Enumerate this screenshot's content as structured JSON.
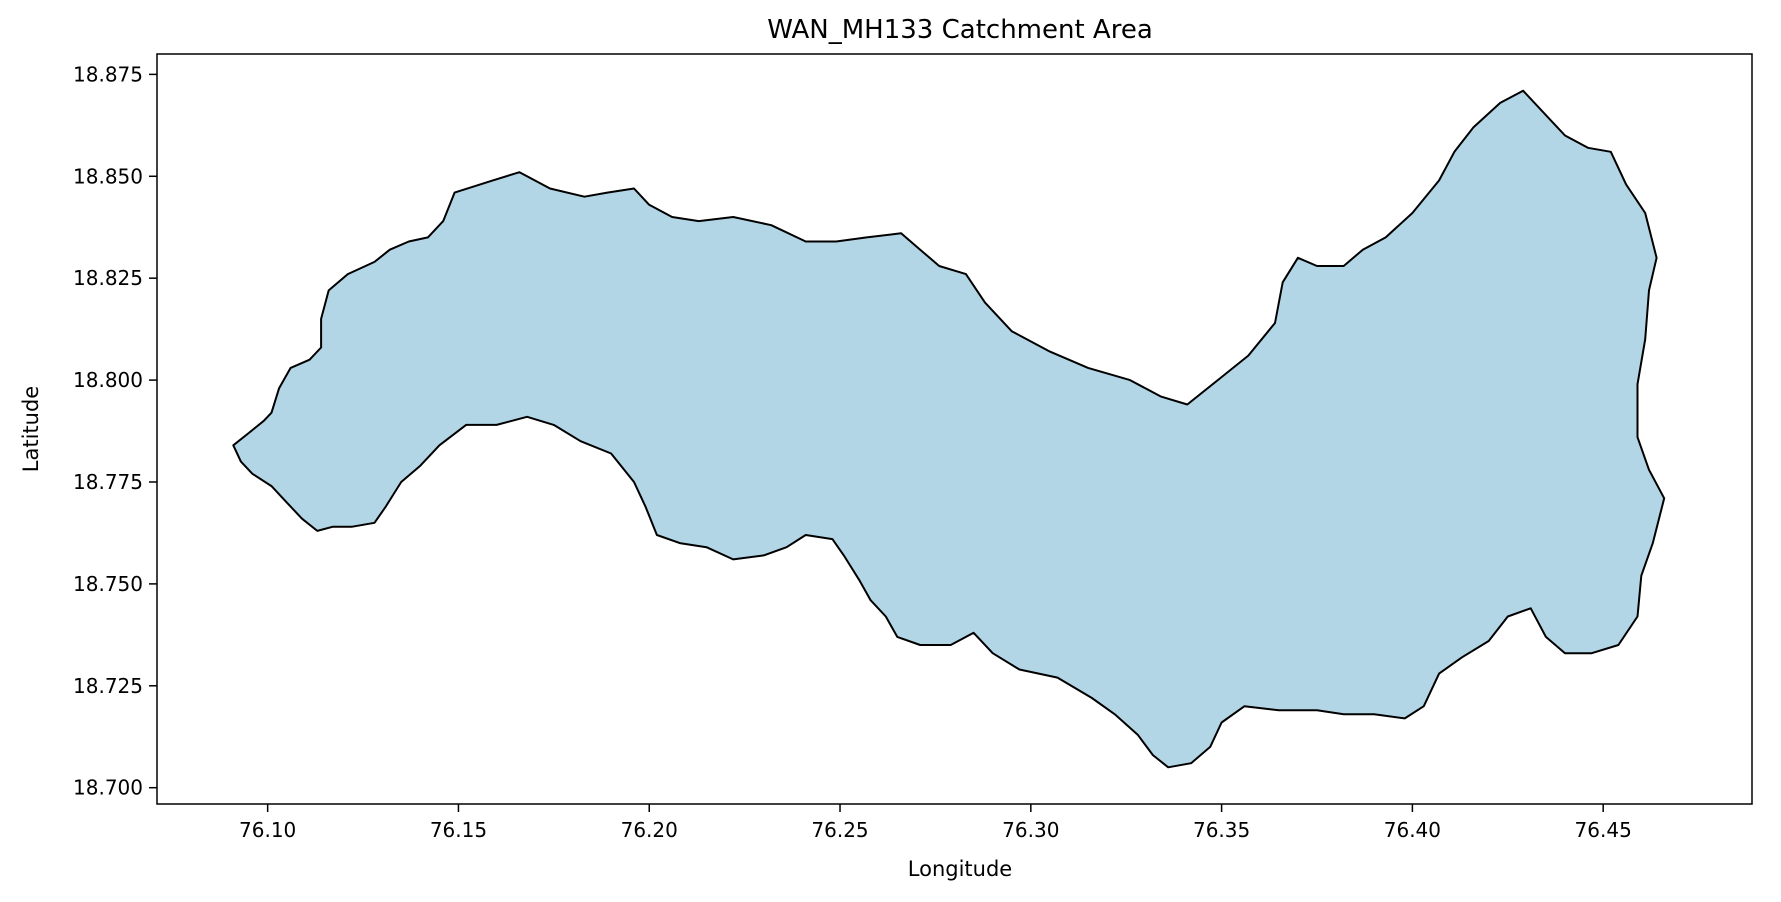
{
  "chart_data": {
    "type": "map",
    "title": "WAN_MH133 Catchment Area",
    "xlabel": "Longitude",
    "ylabel": "Latitude",
    "xlim": [
      76.071,
      76.489
    ],
    "ylim": [
      18.696,
      18.88
    ],
    "xticks": [
      76.1,
      76.15,
      76.2,
      76.25,
      76.3,
      76.35,
      76.4,
      76.45
    ],
    "xtick_labels": [
      "76.10",
      "76.15",
      "76.20",
      "76.25",
      "76.30",
      "76.35",
      "76.40",
      "76.45"
    ],
    "yticks": [
      18.7,
      18.725,
      18.75,
      18.775,
      18.8,
      18.825,
      18.85,
      18.875
    ],
    "ytick_labels": [
      "18.700",
      "18.725",
      "18.750",
      "18.775",
      "18.800",
      "18.825",
      "18.850",
      "18.875"
    ],
    "grid": false,
    "fill_color": "#b3d6e6",
    "edge_color": "#000000",
    "boundary": [
      [
        76.091,
        18.784
      ],
      [
        76.095,
        18.787
      ],
      [
        76.099,
        18.79
      ],
      [
        76.101,
        18.792
      ],
      [
        76.103,
        18.798
      ],
      [
        76.106,
        18.803
      ],
      [
        76.111,
        18.805
      ],
      [
        76.114,
        18.808
      ],
      [
        76.114,
        18.815
      ],
      [
        76.116,
        18.822
      ],
      [
        76.121,
        18.826
      ],
      [
        76.128,
        18.829
      ],
      [
        76.132,
        18.832
      ],
      [
        76.137,
        18.834
      ],
      [
        76.142,
        18.835
      ],
      [
        76.146,
        18.839
      ],
      [
        76.149,
        18.846
      ],
      [
        76.159,
        18.849
      ],
      [
        76.166,
        18.851
      ],
      [
        76.174,
        18.847
      ],
      [
        76.183,
        18.845
      ],
      [
        76.189,
        18.846
      ],
      [
        76.196,
        18.847
      ],
      [
        76.2,
        18.843
      ],
      [
        76.206,
        18.84
      ],
      [
        76.213,
        18.839
      ],
      [
        76.222,
        18.84
      ],
      [
        76.232,
        18.838
      ],
      [
        76.241,
        18.834
      ],
      [
        76.249,
        18.834
      ],
      [
        76.257,
        18.835
      ],
      [
        76.266,
        18.836
      ],
      [
        76.271,
        18.832
      ],
      [
        76.276,
        18.828
      ],
      [
        76.283,
        18.826
      ],
      [
        76.288,
        18.819
      ],
      [
        76.295,
        18.812
      ],
      [
        76.305,
        18.807
      ],
      [
        76.315,
        18.803
      ],
      [
        76.326,
        18.8
      ],
      [
        76.334,
        18.796
      ],
      [
        76.341,
        18.794
      ],
      [
        76.349,
        18.8
      ],
      [
        76.357,
        18.806
      ],
      [
        76.364,
        18.814
      ],
      [
        76.366,
        18.824
      ],
      [
        76.37,
        18.83
      ],
      [
        76.375,
        18.828
      ],
      [
        76.382,
        18.828
      ],
      [
        76.387,
        18.832
      ],
      [
        76.393,
        18.835
      ],
      [
        76.4,
        18.841
      ],
      [
        76.407,
        18.849
      ],
      [
        76.411,
        18.856
      ],
      [
        76.416,
        18.862
      ],
      [
        76.423,
        18.868
      ],
      [
        76.429,
        18.871
      ],
      [
        76.434,
        18.866
      ],
      [
        76.44,
        18.86
      ],
      [
        76.446,
        18.857
      ],
      [
        76.452,
        18.856
      ],
      [
        76.456,
        18.848
      ],
      [
        76.461,
        18.841
      ],
      [
        76.464,
        18.83
      ],
      [
        76.462,
        18.822
      ],
      [
        76.461,
        18.81
      ],
      [
        76.459,
        18.799
      ],
      [
        76.459,
        18.786
      ],
      [
        76.462,
        18.778
      ],
      [
        76.466,
        18.771
      ],
      [
        76.463,
        18.76
      ],
      [
        76.46,
        18.752
      ],
      [
        76.459,
        18.742
      ],
      [
        76.454,
        18.735
      ],
      [
        76.447,
        18.733
      ],
      [
        76.44,
        18.733
      ],
      [
        76.435,
        18.737
      ],
      [
        76.431,
        18.744
      ],
      [
        76.425,
        18.742
      ],
      [
        76.42,
        18.736
      ],
      [
        76.413,
        18.732
      ],
      [
        76.407,
        18.728
      ],
      [
        76.403,
        18.72
      ],
      [
        76.398,
        18.717
      ],
      [
        76.39,
        18.718
      ],
      [
        76.382,
        18.718
      ],
      [
        76.375,
        18.719
      ],
      [
        76.365,
        18.719
      ],
      [
        76.356,
        18.72
      ],
      [
        76.35,
        18.716
      ],
      [
        76.347,
        18.71
      ],
      [
        76.342,
        18.706
      ],
      [
        76.336,
        18.705
      ],
      [
        76.332,
        18.708
      ],
      [
        76.328,
        18.713
      ],
      [
        76.322,
        18.718
      ],
      [
        76.316,
        18.722
      ],
      [
        76.307,
        18.727
      ],
      [
        76.297,
        18.729
      ],
      [
        76.29,
        18.733
      ],
      [
        76.285,
        18.738
      ],
      [
        76.279,
        18.735
      ],
      [
        76.271,
        18.735
      ],
      [
        76.265,
        18.737
      ],
      [
        76.262,
        18.742
      ],
      [
        76.258,
        18.746
      ],
      [
        76.255,
        18.751
      ],
      [
        76.251,
        18.757
      ],
      [
        76.248,
        18.761
      ],
      [
        76.241,
        18.762
      ],
      [
        76.236,
        18.759
      ],
      [
        76.23,
        18.757
      ],
      [
        76.222,
        18.756
      ],
      [
        76.215,
        18.759
      ],
      [
        76.208,
        18.76
      ],
      [
        76.202,
        18.762
      ],
      [
        76.199,
        18.769
      ],
      [
        76.196,
        18.775
      ],
      [
        76.19,
        18.782
      ],
      [
        76.182,
        18.785
      ],
      [
        76.175,
        18.789
      ],
      [
        76.168,
        18.791
      ],
      [
        76.16,
        18.789
      ],
      [
        76.152,
        18.789
      ],
      [
        76.145,
        18.784
      ],
      [
        76.14,
        18.779
      ],
      [
        76.135,
        18.775
      ],
      [
        76.131,
        18.769
      ],
      [
        76.128,
        18.765
      ],
      [
        76.122,
        18.764
      ],
      [
        76.117,
        18.764
      ],
      [
        76.113,
        18.763
      ],
      [
        76.109,
        18.766
      ],
      [
        76.105,
        18.77
      ],
      [
        76.101,
        18.774
      ],
      [
        76.096,
        18.777
      ],
      [
        76.093,
        18.78
      ],
      [
        76.091,
        18.784
      ]
    ]
  }
}
